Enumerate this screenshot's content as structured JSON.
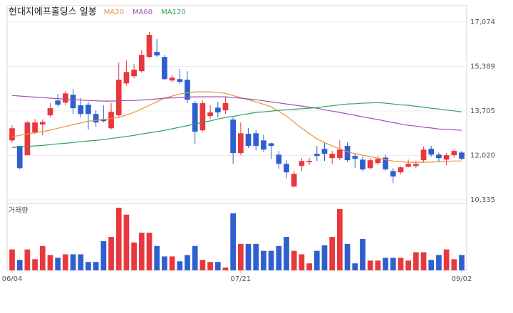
{
  "chart_data": {
    "type": "candlestick",
    "title": "현대지에프홀딩스 일봉",
    "categories": [
      "06/04",
      null,
      null,
      null,
      null,
      null,
      null,
      null,
      null,
      null,
      null,
      null,
      null,
      null,
      null,
      null,
      null,
      null,
      null,
      null,
      null,
      null,
      null,
      null,
      null,
      null,
      null,
      null,
      null,
      null,
      "07/21",
      null,
      null,
      null,
      null,
      null,
      null,
      null,
      null,
      null,
      null,
      null,
      null,
      null,
      null,
      null,
      null,
      null,
      null,
      null,
      null,
      null,
      null,
      null,
      null,
      null,
      null,
      null,
      null,
      "09/02"
    ],
    "open": [
      12590,
      12380,
      12030,
      12890,
      13190,
      13540,
      14100,
      14020,
      14320,
      13920,
      13940,
      13590,
      13400,
      13050,
      13540,
      14750,
      15020,
      15210,
      15750,
      15940,
      15750,
      14860,
      14910,
      14890,
      14000,
      12970,
      13510,
      13830,
      13730,
      13380,
      12110,
      12840,
      12860,
      12590,
      12480,
      12050,
      11700,
      10840,
      11620,
      11760,
      12080,
      12270,
      11920,
      11920,
      12380,
      12000,
      11860,
      11540,
      11730,
      11940,
      11430,
      11380,
      11590,
      11620,
      11840,
      12270,
      12050,
      11860,
      12030,
      12130
    ],
    "high": [
      13160,
      12380,
      13320,
      13400,
      13380,
      14000,
      14350,
      14460,
      14540,
      14190,
      14050,
      13730,
      13920,
      14000,
      15540,
      15620,
      15480,
      16020,
      16700,
      16430,
      15830,
      15080,
      15290,
      15210,
      14080,
      14100,
      13920,
      14050,
      14240,
      13460,
      13270,
      13050,
      12970,
      12810,
      12510,
      12190,
      11840,
      11430,
      11920,
      11920,
      12380,
      12510,
      12190,
      12590,
      12510,
      12110,
      11970,
      11920,
      12000,
      12050,
      11540,
      11620,
      11860,
      11810,
      12350,
      12380,
      12130,
      12110,
      12240,
      12190
    ],
    "low": [
      12510,
      11490,
      12030,
      12840,
      12780,
      13460,
      13860,
      13920,
      13590,
      13460,
      13000,
      13110,
      13270,
      13000,
      13460,
      14670,
      14940,
      15160,
      15700,
      15750,
      14890,
      14780,
      14730,
      14000,
      12460,
      12920,
      13400,
      13460,
      13590,
      11700,
      12030,
      12300,
      12210,
      12160,
      11890,
      11510,
      11160,
      10810,
      11430,
      11650,
      11810,
      11810,
      11700,
      11840,
      11760,
      11540,
      11430,
      11490,
      11650,
      11430,
      10970,
      11300,
      11570,
      11540,
      11780,
      11970,
      11760,
      11650,
      11940,
      11840
    ],
    "close": [
      13050,
      11540,
      13270,
      13270,
      13290,
      13810,
      13940,
      14370,
      13810,
      13590,
      13590,
      13270,
      13320,
      13670,
      14890,
      15180,
      15270,
      15830,
      16590,
      15810,
      14910,
      14970,
      14810,
      14130,
      12920,
      14000,
      13650,
      13650,
      14000,
      12110,
      12860,
      12380,
      12380,
      12240,
      12380,
      11700,
      11380,
      11320,
      11810,
      11810,
      12000,
      12080,
      12080,
      12240,
      11840,
      11890,
      11490,
      11840,
      11890,
      11490,
      11220,
      11570,
      11700,
      11700,
      12240,
      12050,
      11920,
      12030,
      12190,
      11890
    ],
    "up_color": "#e8383d",
    "down_color": "#2f5fcf",
    "series": [
      {
        "name": "MA20",
        "color": "#e8923a",
        "values": [
          12730,
          12780,
          12840,
          12880,
          12920,
          12980,
          13050,
          13120,
          13190,
          13250,
          13320,
          13350,
          13380,
          13420,
          13460,
          13550,
          13650,
          13780,
          13920,
          14050,
          14190,
          14270,
          14350,
          14390,
          14430,
          14430,
          14430,
          14400,
          14370,
          14290,
          14210,
          14130,
          14050,
          13960,
          13860,
          13690,
          13510,
          13280,
          13050,
          12850,
          12650,
          12510,
          12380,
          12270,
          12160,
          12090,
          12030,
          11970,
          11920,
          11860,
          11810,
          11780,
          11760,
          11760,
          11760,
          11770,
          11780,
          11800,
          11810,
          11810
        ]
      },
      {
        "name": "MA60",
        "color": "#9b4fb5",
        "values": [
          14290,
          14270,
          14250,
          14230,
          14210,
          14190,
          14170,
          14150,
          14130,
          14120,
          14100,
          14090,
          14080,
          14080,
          14090,
          14100,
          14100,
          14120,
          14140,
          14160,
          14190,
          14200,
          14210,
          14230,
          14240,
          14240,
          14240,
          14240,
          14240,
          14210,
          14190,
          14160,
          14130,
          14090,
          14050,
          14010,
          13970,
          13930,
          13890,
          13850,
          13810,
          13750,
          13700,
          13650,
          13590,
          13540,
          13480,
          13430,
          13380,
          13320,
          13270,
          13210,
          13160,
          13130,
          13090,
          13060,
          13020,
          13010,
          12990,
          12970
        ]
      },
      {
        "name": "MA120",
        "color": "#2aa35a",
        "values": [
          12320,
          12340,
          12360,
          12380,
          12400,
          12430,
          12460,
          12480,
          12510,
          12540,
          12570,
          12590,
          12620,
          12660,
          12700,
          12740,
          12780,
          12830,
          12880,
          12920,
          12970,
          13030,
          13090,
          13150,
          13210,
          13270,
          13330,
          13400,
          13460,
          13500,
          13550,
          13600,
          13650,
          13670,
          13700,
          13730,
          13750,
          13770,
          13790,
          13810,
          13830,
          13870,
          13900,
          13940,
          13970,
          13980,
          14000,
          14010,
          14020,
          14000,
          13970,
          13940,
          13920,
          13880,
          13850,
          13810,
          13780,
          13740,
          13710,
          13670
        ]
      }
    ],
    "ylim": [
      10335,
      17074
    ],
    "yticks": [
      {
        "value": 17074,
        "label": "17,074"
      },
      {
        "value": 15389,
        "label": "15,389"
      },
      {
        "value": 13705,
        "label": "13,705"
      },
      {
        "value": 12020,
        "label": "12,020"
      },
      {
        "value": 10335,
        "label": "10,335"
      }
    ],
    "grid": true,
    "volume": {
      "label": "거래량",
      "values": [
        30,
        15,
        30,
        16,
        35,
        22,
        18,
        23,
        23,
        23,
        12,
        12,
        42,
        48,
        90,
        80,
        40,
        54,
        54,
        35,
        20,
        20,
        13,
        22,
        35,
        15,
        12,
        12,
        4,
        82,
        38,
        38,
        38,
        28,
        28,
        35,
        48,
        28,
        23,
        10,
        28,
        36,
        48,
        88,
        38,
        10,
        45,
        14,
        14,
        18,
        18,
        18,
        14,
        26,
        26,
        15,
        22,
        30,
        16,
        22
      ]
    }
  }
}
